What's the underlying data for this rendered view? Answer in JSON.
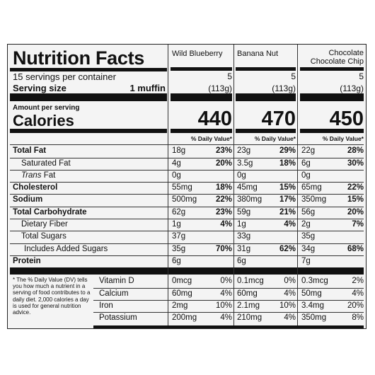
{
  "label": {
    "title": "Nutrition Facts",
    "servings_per_container": "15 servings per container",
    "serving_size": {
      "label": "Serving size",
      "value": "1 muffin"
    },
    "amount_per_serving": "Amount per serving",
    "calories": "Calories",
    "nutrients": [
      "Total Fat",
      "Saturated Fat",
      {
        "italic": "Trans",
        "text": "Fat"
      },
      "Cholesterol",
      "Sodium",
      "Total Carbohydrate",
      "Dietary Fiber",
      "Total Sugars",
      "Includes Added Sugars",
      "Protein"
    ],
    "vitamins": [
      "Vitamin D",
      "Calcium",
      "Iron",
      "Potassium"
    ],
    "footnote": "* The % Daily Value (DV) tells you how much a nutrient in a serving of food contributes to a daily diet. 2,000 calories a day is used for general nutrition advice."
  },
  "products": [
    {
      "name": "Wild Blueberry",
      "servings": "5",
      "serving_size": "(113g)",
      "calories": "440",
      "daily_value_header": "% Daily Value*",
      "nutrients": [
        {
          "amount": "18g",
          "dv": "23%"
        },
        {
          "amount": "4g",
          "dv": "20%"
        },
        {
          "amount": "0g"
        },
        {
          "amount": "55mg",
          "dv": "18%"
        },
        {
          "amount": "500mg",
          "dv": "22%"
        },
        {
          "amount": "62g",
          "dv": "23%"
        },
        {
          "amount": "1g",
          "dv": "4%"
        },
        {
          "amount": "37g"
        },
        {
          "amount": "35g",
          "dv": "70%"
        },
        {
          "amount": "6g"
        }
      ],
      "vitamins": [
        {
          "amount": "0mcg",
          "dv": "0%"
        },
        {
          "amount": "60mg",
          "dv": "4%"
        },
        {
          "amount": "2mg",
          "dv": "10%"
        },
        {
          "amount": "200mg",
          "dv": "4%"
        }
      ]
    },
    {
      "name": "Banana Nut",
      "servings": "5",
      "serving_size": "(113g)",
      "calories": "470",
      "daily_value_header": "% Daily Value*",
      "nutrients": [
        {
          "amount": "23g",
          "dv": "29%"
        },
        {
          "amount": "3.5g",
          "dv": "18%"
        },
        {
          "amount": "0g"
        },
        {
          "amount": "45mg",
          "dv": "15%"
        },
        {
          "amount": "380mg",
          "dv": "17%"
        },
        {
          "amount": "59g",
          "dv": "21%"
        },
        {
          "amount": "1g",
          "dv": "4%"
        },
        {
          "amount": "33g"
        },
        {
          "amount": "31g",
          "dv": "62%"
        },
        {
          "amount": "6g"
        }
      ],
      "vitamins": [
        {
          "amount": "0.1mcg",
          "dv": "0%"
        },
        {
          "amount": "60mg",
          "dv": "4%"
        },
        {
          "amount": "2.1mg",
          "dv": "10%"
        },
        {
          "amount": "210mg",
          "dv": "4%"
        }
      ]
    },
    {
      "name": "Chocolate Chocolate Chip",
      "servings": "5",
      "serving_size": "(113g)",
      "calories": "450",
      "daily_value_header": "% Daily Value*",
      "nutrients": [
        {
          "amount": "22g",
          "dv": "28%"
        },
        {
          "amount": "6g",
          "dv": "30%"
        },
        {
          "amount": "0g"
        },
        {
          "amount": "65mg",
          "dv": "22%"
        },
        {
          "amount": "350mg",
          "dv": "15%"
        },
        {
          "amount": "56g",
          "dv": "20%"
        },
        {
          "amount": "2g",
          "dv": "7%"
        },
        {
          "amount": "35g"
        },
        {
          "amount": "34g",
          "dv": "68%"
        },
        {
          "amount": "7g"
        }
      ],
      "vitamins": [
        {
          "amount": "0.3mcg",
          "dv": "2%"
        },
        {
          "amount": "50mg",
          "dv": "4%"
        },
        {
          "amount": "3.4mg",
          "dv": "20%"
        },
        {
          "amount": "350mg",
          "dv": "8%"
        }
      ]
    }
  ]
}
